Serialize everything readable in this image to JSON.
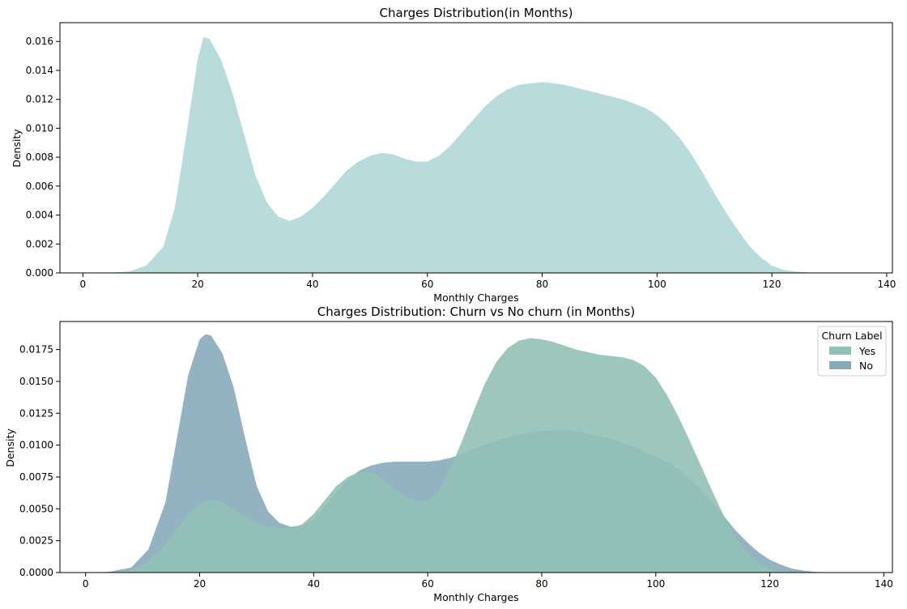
{
  "chart_data": [
    {
      "type": "area",
      "title": "Charges Distribution(in Months)",
      "xlabel": "Monthly Charges",
      "ylabel": "Density",
      "xlim": [
        -4,
        141
      ],
      "ylim": [
        0,
        0.0173
      ],
      "xticks": [
        0,
        20,
        40,
        60,
        80,
        100,
        120,
        140
      ],
      "xtick_labels": [
        "0",
        "20",
        "40",
        "60",
        "80",
        "100",
        "120",
        "140"
      ],
      "yticks": [
        0,
        0.002,
        0.004,
        0.006,
        0.008,
        0.01,
        0.012,
        0.014,
        0.016
      ],
      "ytick_labels": [
        "0.000",
        "0.002",
        "0.004",
        "0.006",
        "0.008",
        "0.010",
        "0.012",
        "0.014",
        "0.016"
      ],
      "grid": false,
      "series": [
        {
          "color": "#b8dcdc",
          "x": [
            2,
            5,
            8,
            11,
            14,
            16,
            18,
            20,
            21,
            22,
            24,
            26,
            28,
            30,
            32,
            34,
            36,
            38,
            40,
            42,
            44,
            46,
            48,
            50,
            52,
            54,
            56,
            58,
            60,
            62,
            64,
            66,
            68,
            70,
            72,
            74,
            76,
            78,
            80,
            82,
            84,
            86,
            88,
            90,
            92,
            94,
            96,
            98,
            100,
            102,
            104,
            106,
            108,
            110,
            112,
            114,
            116,
            118,
            120,
            122,
            124,
            126,
            128,
            130
          ],
          "y": [
            0.0,
            2e-05,
            0.0001,
            0.0005,
            0.0018,
            0.0045,
            0.0095,
            0.0148,
            0.0163,
            0.0162,
            0.0148,
            0.0125,
            0.0097,
            0.0068,
            0.0049,
            0.0039,
            0.0036,
            0.0039,
            0.0045,
            0.0053,
            0.0062,
            0.0071,
            0.0077,
            0.0081,
            0.0083,
            0.0082,
            0.0079,
            0.0077,
            0.0077,
            0.0081,
            0.0088,
            0.0097,
            0.0106,
            0.0115,
            0.0122,
            0.0127,
            0.013,
            0.0131,
            0.0132,
            0.0131,
            0.013,
            0.0128,
            0.0126,
            0.0124,
            0.0122,
            0.012,
            0.0117,
            0.0114,
            0.0109,
            0.0102,
            0.0093,
            0.0082,
            0.0069,
            0.0055,
            0.0042,
            0.003,
            0.0019,
            0.0011,
            0.0005,
            0.00022,
            0.0001,
            4e-05,
            1e-05,
            0.0
          ]
        }
      ]
    },
    {
      "type": "area",
      "title": "Charges Distribution: Churn vs No churn (in Months)",
      "xlabel": "Monthly Charges",
      "ylabel": "Density",
      "xlim": [
        -4.5,
        141.5
      ],
      "ylim": [
        0,
        0.0197
      ],
      "xticks": [
        0,
        20,
        40,
        60,
        80,
        100,
        120,
        140
      ],
      "xtick_labels": [
        "0",
        "20",
        "40",
        "60",
        "80",
        "100",
        "120",
        "140"
      ],
      "yticks": [
        0,
        0.0025,
        0.005,
        0.0075,
        0.01,
        0.0125,
        0.015,
        0.0175
      ],
      "ytick_labels": [
        "0.0000",
        "0.0025",
        "0.0050",
        "0.0075",
        "0.0100",
        "0.0125",
        "0.0150",
        "0.0175"
      ],
      "grid": false,
      "legend": {
        "title": "Churn Label",
        "position": "top-right"
      },
      "series": [
        {
          "name": "No",
          "color": "#87aabb",
          "x": [
            0,
            4,
            8,
            11,
            14,
            16,
            18,
            20,
            21,
            22,
            24,
            26,
            28,
            30,
            32,
            34,
            36,
            38,
            40,
            42,
            44,
            46,
            48,
            50,
            52,
            54,
            56,
            58,
            60,
            62,
            64,
            66,
            68,
            70,
            72,
            74,
            76,
            78,
            80,
            82,
            84,
            86,
            88,
            90,
            92,
            94,
            96,
            98,
            100,
            102,
            104,
            106,
            108,
            110,
            112,
            114,
            116,
            118,
            120,
            122,
            124,
            126,
            128,
            130
          ],
          "y": [
            0.0,
            5e-05,
            0.0004,
            0.0018,
            0.0055,
            0.0105,
            0.0155,
            0.0183,
            0.0187,
            0.0186,
            0.0172,
            0.0145,
            0.0105,
            0.0068,
            0.0048,
            0.0039,
            0.0036,
            0.0037,
            0.0042,
            0.0052,
            0.0063,
            0.0073,
            0.008,
            0.0084,
            0.0086,
            0.0087,
            0.0087,
            0.0087,
            0.0087,
            0.0088,
            0.009,
            0.0093,
            0.0097,
            0.01,
            0.0103,
            0.0106,
            0.0108,
            0.011,
            0.0111,
            0.0112,
            0.0112,
            0.0111,
            0.0109,
            0.0107,
            0.0105,
            0.0102,
            0.0099,
            0.0095,
            0.0091,
            0.0087,
            0.0081,
            0.0074,
            0.0065,
            0.0055,
            0.0044,
            0.0033,
            0.0024,
            0.0016,
            0.001,
            0.0006,
            0.0003,
            0.00015,
            5e-05,
            0.0
          ]
        },
        {
          "name": "Yes",
          "color": "#92c0b6",
          "x": [
            3,
            7,
            10,
            13,
            15,
            17,
            19,
            21,
            22,
            24,
            26,
            28,
            30,
            32,
            34,
            36,
            38,
            40,
            42,
            44,
            46,
            48,
            50,
            52,
            54,
            56,
            58,
            60,
            62,
            64,
            66,
            68,
            70,
            72,
            74,
            76,
            78,
            80,
            82,
            84,
            86,
            88,
            90,
            92,
            94,
            96,
            98,
            100,
            102,
            104,
            106,
            108,
            110,
            112,
            114,
            116,
            118,
            120,
            122,
            124,
            126
          ],
          "y": [
            0.0,
            0.0001,
            0.0006,
            0.0017,
            0.0028,
            0.0041,
            0.0051,
            0.0056,
            0.0057,
            0.0055,
            0.005,
            0.0044,
            0.0039,
            0.0036,
            0.0035,
            0.0035,
            0.0038,
            0.0046,
            0.0057,
            0.0068,
            0.0075,
            0.0079,
            0.0079,
            0.0074,
            0.0066,
            0.006,
            0.0056,
            0.0056,
            0.0065,
            0.0082,
            0.0103,
            0.0126,
            0.0148,
            0.0165,
            0.0176,
            0.0182,
            0.0184,
            0.0183,
            0.0181,
            0.0178,
            0.0175,
            0.0173,
            0.0171,
            0.017,
            0.0169,
            0.0167,
            0.0162,
            0.0153,
            0.0139,
            0.0122,
            0.0103,
            0.0083,
            0.0063,
            0.0044,
            0.0028,
            0.0016,
            0.0008,
            0.0003,
            0.0001,
            2e-05,
            0.0
          ]
        }
      ]
    }
  ]
}
